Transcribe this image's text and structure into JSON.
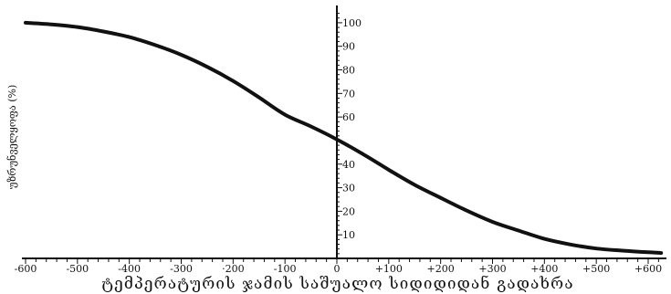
{
  "chart_data": {
    "type": "line",
    "xlabel": "ტემპერატურის ჯამის საშუალო სიდიდიდან გადახრა",
    "ylabel": "უზრუნველყოფა (%)",
    "xlim": [
      -600,
      620
    ],
    "ylim": [
      0,
      105
    ],
    "x_ticks": [
      -600,
      -500,
      -400,
      -300,
      -200,
      -100,
      0,
      100,
      200,
      300,
      400,
      500,
      600
    ],
    "x_tick_labels": [
      "-600",
      "-500",
      "-400",
      "-300",
      "·200",
      "-100",
      "0",
      "+100",
      "+200",
      "+300",
      "+400",
      "+500",
      "+600"
    ],
    "y_ticks": [
      10,
      20,
      30,
      40,
      60,
      70,
      80,
      90,
      100
    ],
    "y_tick_labels": [
      "10",
      "20",
      "30",
      "40",
      "60",
      "70",
      "80",
      "90",
      "100"
    ],
    "series": [
      {
        "x": [
          -600,
          -550,
          -500,
          -450,
          -400,
          -350,
          -300,
          -250,
          -200,
          -150,
          -100,
          -50,
          0,
          50,
          100,
          150,
          200,
          250,
          300,
          350,
          400,
          450,
          500,
          550,
          600,
          625
        ],
        "values": [
          100,
          99.3,
          98.2,
          96.3,
          93.9,
          90.5,
          86.4,
          81.3,
          75.3,
          68.3,
          61,
          56,
          50.5,
          44.3,
          37.6,
          31.2,
          25.7,
          20.3,
          15.5,
          11.8,
          8.3,
          5.9,
          4.2,
          3.3,
          2.6,
          2.3
        ]
      }
    ],
    "grid": false,
    "legend": "none"
  }
}
